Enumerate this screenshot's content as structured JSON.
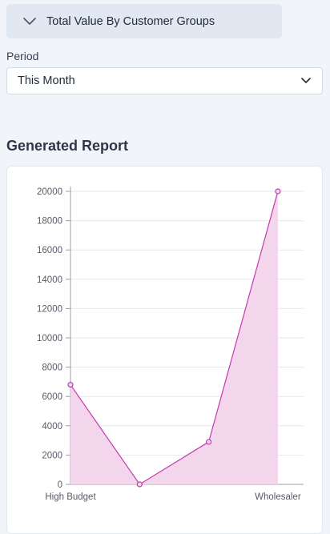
{
  "panel": {
    "title": "Total Value By Customer Groups",
    "icon": "chevron-down-icon"
  },
  "period": {
    "label": "Period",
    "selected": "This Month",
    "icon": "chevron-down-icon"
  },
  "report": {
    "title": "Generated Report"
  },
  "chart_data": {
    "type": "area",
    "x": [
      "High Budget",
      "",
      "",
      "Wholesaler"
    ],
    "series": [
      {
        "values": [
          6800,
          0,
          2900,
          20000
        ]
      }
    ],
    "x_tick_labels": [
      "High Budget",
      "Wholesaler"
    ],
    "y_ticks": [
      "0",
      "2000",
      "4000",
      "6000",
      "8000",
      "10000",
      "12000",
      "14000",
      "16000",
      "18000",
      "20000"
    ],
    "ylim": [
      0,
      20000
    ],
    "grid": true,
    "colors": {
      "line": "#c23bb0",
      "fill": "#f4d6ec",
      "grid": "#e5e7eb",
      "axis": "#9aa0a8"
    }
  }
}
